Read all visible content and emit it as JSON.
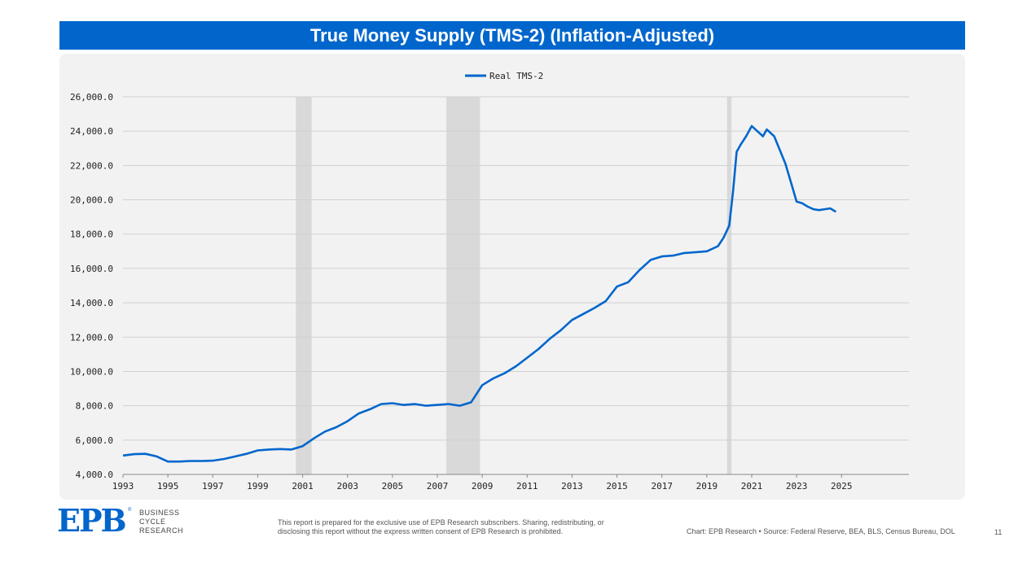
{
  "header": {
    "title": "True Money Supply (TMS-2) (Inflation-Adjusted)"
  },
  "footer": {
    "logo_letters": "EPB",
    "logo_registered": "®",
    "logo_line1": "BUSINESS",
    "logo_line2": "CYCLE",
    "logo_line3": "RESEARCH",
    "disclaimer": "This report is prepared for the exclusive use of EPB Research subscribers. Sharing, redistributing, or disclosing this report without the express written consent of EPB Research is prohibited.",
    "source": "Chart: EPB Research  •  Source: Federal Reserve, BEA, BLS, Census Bureau, DOL",
    "page_number": "11"
  },
  "colors": {
    "title_bg": "#0066cc",
    "series": "#0066cc",
    "recession": "#d9d9d9",
    "panel": "#f2f2f2"
  },
  "chart_data": {
    "type": "line",
    "title": "True Money Supply (TMS-2) (Inflation-Adjusted)",
    "xlabel": "",
    "ylabel": "",
    "xlim": [
      1993,
      2028
    ],
    "ylim": [
      4000,
      26000
    ],
    "x_ticks": [
      1993,
      1995,
      1997,
      1999,
      2001,
      2003,
      2005,
      2007,
      2009,
      2011,
      2013,
      2015,
      2017,
      2019,
      2021,
      2023,
      2025
    ],
    "y_ticks": [
      4000,
      6000,
      8000,
      10000,
      12000,
      14000,
      16000,
      18000,
      20000,
      22000,
      24000,
      26000
    ],
    "y_tick_labels": [
      "4,000.0",
      "6,000.0",
      "8,000.0",
      "10,000.0",
      "12,000.0",
      "14,000.0",
      "16,000.0",
      "18,000.0",
      "20,000.0",
      "22,000.0",
      "24,000.0",
      "26,000.0"
    ],
    "grid": "horizontal",
    "legend": {
      "position": "top-center",
      "entries": [
        "Real TMS-2"
      ]
    },
    "recessions": [
      [
        2000.7,
        2001.4
      ],
      [
        2007.4,
        2008.9
      ],
      [
        2019.9,
        2020.1
      ]
    ],
    "series": [
      {
        "name": "Real TMS-2",
        "points": [
          [
            1993.0,
            5100
          ],
          [
            1993.5,
            5180
          ],
          [
            1994.0,
            5200
          ],
          [
            1994.5,
            5050
          ],
          [
            1995.0,
            4750
          ],
          [
            1995.5,
            4750
          ],
          [
            1996.0,
            4780
          ],
          [
            1996.5,
            4780
          ],
          [
            1997.0,
            4800
          ],
          [
            1997.5,
            4900
          ],
          [
            1998.0,
            5050
          ],
          [
            1998.5,
            5200
          ],
          [
            1999.0,
            5400
          ],
          [
            1999.5,
            5450
          ],
          [
            2000.0,
            5480
          ],
          [
            2000.5,
            5450
          ],
          [
            2001.0,
            5650
          ],
          [
            2001.5,
            6100
          ],
          [
            2002.0,
            6500
          ],
          [
            2002.5,
            6750
          ],
          [
            2003.0,
            7100
          ],
          [
            2003.5,
            7550
          ],
          [
            2004.0,
            7800
          ],
          [
            2004.5,
            8100
          ],
          [
            2005.0,
            8150
          ],
          [
            2005.5,
            8050
          ],
          [
            2006.0,
            8100
          ],
          [
            2006.5,
            8000
          ],
          [
            2007.0,
            8050
          ],
          [
            2007.5,
            8100
          ],
          [
            2008.0,
            8000
          ],
          [
            2008.5,
            8200
          ],
          [
            2009.0,
            9200
          ],
          [
            2009.5,
            9600
          ],
          [
            2010.0,
            9900
          ],
          [
            2010.5,
            10300
          ],
          [
            2011.0,
            10800
          ],
          [
            2011.5,
            11300
          ],
          [
            2012.0,
            11900
          ],
          [
            2012.5,
            12400
          ],
          [
            2013.0,
            13000
          ],
          [
            2013.5,
            13350
          ],
          [
            2014.0,
            13700
          ],
          [
            2014.5,
            14100
          ],
          [
            2015.0,
            14950
          ],
          [
            2015.5,
            15200
          ],
          [
            2016.0,
            15900
          ],
          [
            2016.5,
            16500
          ],
          [
            2017.0,
            16700
          ],
          [
            2017.5,
            16750
          ],
          [
            2018.0,
            16900
          ],
          [
            2018.5,
            16950
          ],
          [
            2019.0,
            17000
          ],
          [
            2019.5,
            17300
          ],
          [
            2019.75,
            17800
          ],
          [
            2020.0,
            18500
          ],
          [
            2020.17,
            20500
          ],
          [
            2020.33,
            22800
          ],
          [
            2020.5,
            23200
          ],
          [
            2020.75,
            23700
          ],
          [
            2021.0,
            24300
          ],
          [
            2021.25,
            24000
          ],
          [
            2021.5,
            23700
          ],
          [
            2021.67,
            24100
          ],
          [
            2022.0,
            23700
          ],
          [
            2022.25,
            22900
          ],
          [
            2022.5,
            22100
          ],
          [
            2022.75,
            21000
          ],
          [
            2023.0,
            19900
          ],
          [
            2023.25,
            19800
          ],
          [
            2023.5,
            19600
          ],
          [
            2023.75,
            19450
          ],
          [
            2024.0,
            19400
          ],
          [
            2024.25,
            19450
          ],
          [
            2024.5,
            19500
          ],
          [
            2024.75,
            19300
          ]
        ]
      }
    ]
  }
}
